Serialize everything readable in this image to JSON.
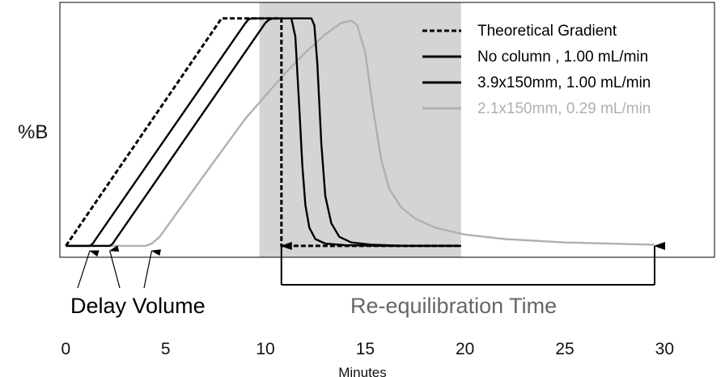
{
  "chart_data": {
    "type": "line",
    "title": "",
    "xlabel": "Minutes",
    "ylabel": "%B",
    "xlim": [
      -0.3,
      32.5
    ],
    "ylim": [
      -5,
      107
    ],
    "x_ticks": [
      0,
      5,
      10,
      15,
      20,
      25,
      30
    ],
    "grid": false,
    "legend_position": "top-right",
    "shaded_region": {
      "x_start": 9.7,
      "x_end": 19.8,
      "color": "#d4d4d4"
    },
    "series": [
      {
        "name": "Theoretical Gradient",
        "color": "#000000",
        "dash": true,
        "x": [
          0,
          7.8,
          10.8,
          10.8,
          19.8
        ],
        "y": [
          0,
          100,
          100,
          0,
          0
        ]
      },
      {
        "name": "No column , 1.00 mL/min",
        "color": "#000000",
        "dash": false,
        "x": [
          0,
          1.2,
          1.35,
          1.5,
          9.0,
          9.15,
          9.3,
          11.3,
          11.5,
          11.7,
          11.85,
          12.0,
          12.2,
          12.5,
          13.0,
          14.0,
          16.0,
          19.8
        ],
        "y": [
          0,
          0,
          1,
          3,
          98,
          99.5,
          100,
          100,
          92,
          60,
          35,
          18,
          8,
          3,
          1,
          0.3,
          0,
          0
        ]
      },
      {
        "name": "3.9x150mm, 1.00 mL/min",
        "color": "#000000",
        "dash": false,
        "x": [
          0,
          2.2,
          2.35,
          2.5,
          10.0,
          10.2,
          10.4,
          12.3,
          12.45,
          12.6,
          12.8,
          13.0,
          13.3,
          13.7,
          14.3,
          15.3,
          17.0,
          19.8
        ],
        "y": [
          0,
          0,
          1,
          3,
          98,
          99.5,
          100,
          100,
          97,
          80,
          45,
          22,
          10,
          4,
          1.5,
          0.5,
          0,
          0
        ]
      },
      {
        "name": "2.1x150mm, 0.29 mL/min",
        "color": "#b0b0b0",
        "dash": false,
        "x": [
          0,
          4.0,
          4.3,
          4.7,
          7.0,
          9.0,
          10.0,
          11.0,
          12.0,
          13.0,
          13.8,
          14.3,
          14.6,
          15.0,
          15.4,
          15.8,
          16.2,
          16.8,
          17.5,
          18.5,
          20.0,
          22.0,
          25.0,
          29.5
        ],
        "y": [
          0,
          0,
          1,
          4,
          32,
          56,
          66,
          76,
          85,
          93,
          98,
          99,
          97,
          85,
          60,
          38,
          25,
          17,
          12,
          8,
          5,
          3,
          1.5,
          0.5
        ]
      }
    ]
  },
  "annotations": {
    "delay_volume": {
      "label": "Delay Volume",
      "points": [
        1.2,
        2.2,
        4.3
      ]
    },
    "reequilibration": {
      "label": "Re-equilibration Time",
      "x_start": 10.8,
      "x_end": 29.5
    }
  }
}
